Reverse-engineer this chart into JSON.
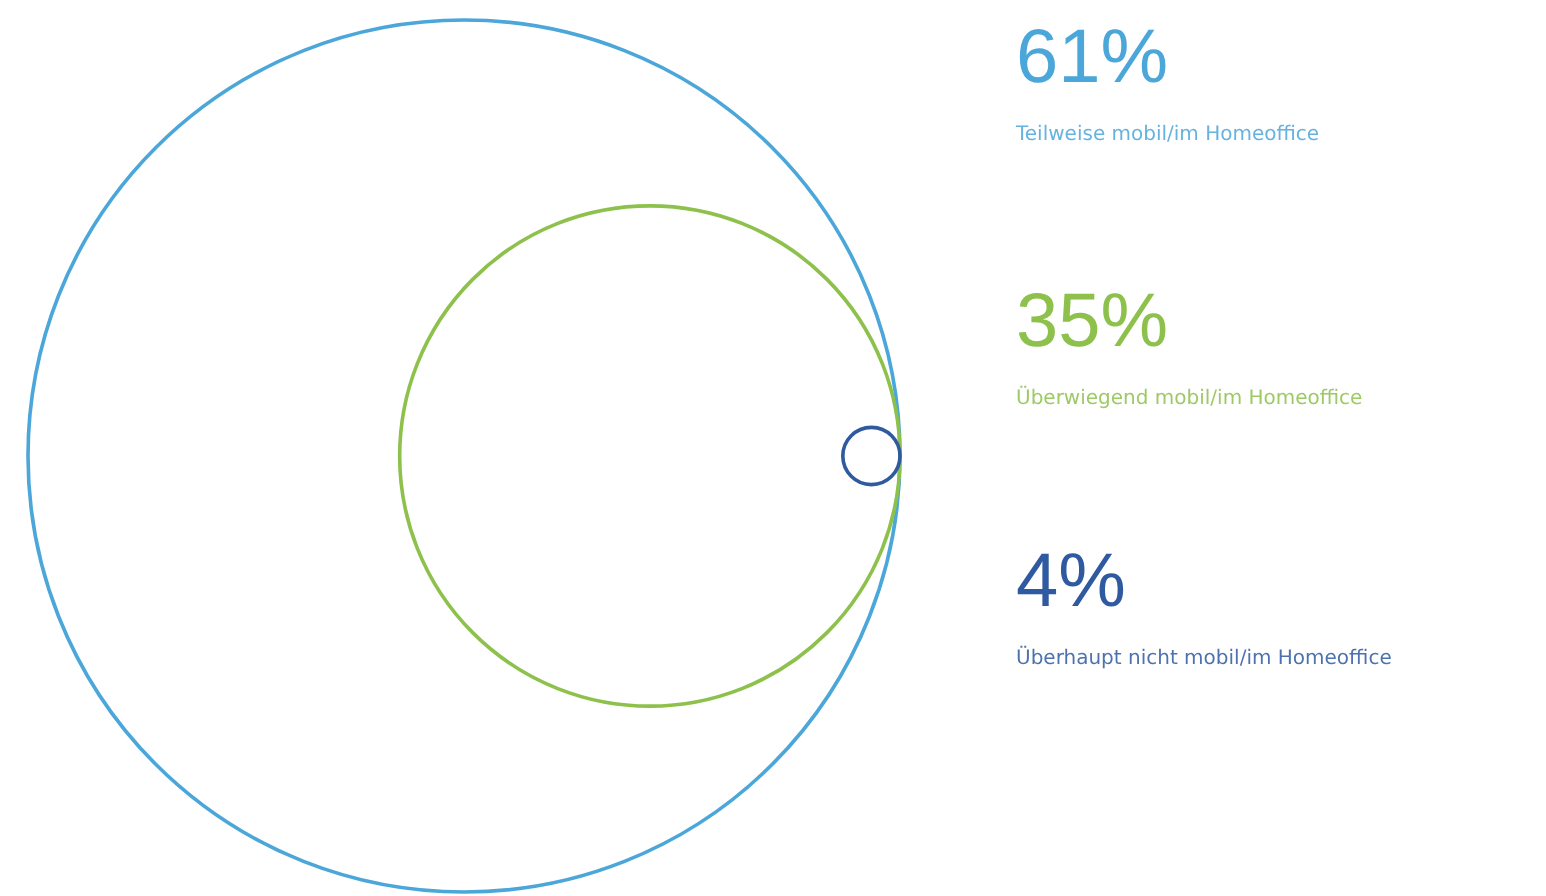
{
  "chart_data": {
    "type": "other",
    "categories": [
      "Teilweise mobil/im Homeoffice",
      "Überwiegend mobil/im Homeoffice",
      "Überhaupt nicht mobil/im Homeoffice"
    ],
    "values": [
      61,
      35,
      4
    ],
    "value_labels": [
      "61%",
      "35%",
      "4%"
    ],
    "colors": [
      "#4ba6d9",
      "#8dc14c",
      "#2f5aa0"
    ]
  }
}
